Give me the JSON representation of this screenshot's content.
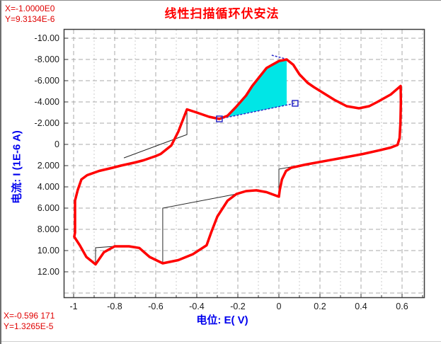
{
  "title": "线性扫描循环伏安法",
  "readouts": {
    "top": {
      "x": "X=-1.0000E0",
      "y": "Y=9.3134E-6"
    },
    "bottom": {
      "x": "X=-0.596 171",
      "y": "Y=1.3265E-5"
    }
  },
  "colors": {
    "curve": "#ff0000",
    "title": "#ff0000",
    "readout": "#e00000",
    "axis_label": "#0000ee",
    "peak_fill": "#00e6e6",
    "marker_blue": "#2a2ac8",
    "grid_major": "#a8a8a8",
    "grid_minor": "#cdcdcd",
    "plot_border": "#3c3c3c",
    "baseline_black": "#282828",
    "tick_text": "#1b1b1b"
  },
  "chart_data": {
    "type": "line",
    "title": "线性扫描循环伏安法",
    "xlabel": "电位:  E( V)",
    "ylabel": "电流:  I (1E-6 A)",
    "x_unit": "V",
    "y_unit": "1E-6 A",
    "xlim": [
      -1.048,
      0.71
    ],
    "ylim": [
      14.5,
      -10.9
    ],
    "y_axis_inverted": true,
    "grid": true,
    "legend": false,
    "x_ticks": [
      -1,
      -0.8,
      -0.6,
      -0.4,
      -0.2,
      0,
      0.2,
      0.4,
      0.6
    ],
    "x_tick_labels": [
      "-1",
      "-0.8",
      "-0.6",
      "-0.4",
      "-0.2",
      "0",
      "0.2",
      "0.4",
      "0.6"
    ],
    "x_minor_ticks": [
      -0.9,
      -0.7,
      -0.5,
      -0.3,
      -0.1,
      0.1,
      0.3,
      0.5,
      0.7
    ],
    "y_ticks": [
      -10,
      -8,
      -6,
      -4,
      -2,
      0,
      2,
      4,
      6,
      8,
      10,
      12
    ],
    "y_tick_labels": [
      "-10.00",
      "-8.000",
      "-6.000",
      "-4.000",
      "-2.000",
      "0",
      "2.000",
      "4.000",
      "6.000",
      "8.000",
      "10.00",
      "12.00"
    ],
    "y_grid_values": [
      -10,
      -8,
      -6,
      -4,
      -2,
      0,
      2,
      4,
      6,
      8,
      10,
      12,
      14
    ],
    "series": [
      {
        "name": "cv-curve",
        "color": "#ff0000",
        "width": 3.5,
        "points": [
          [
            -0.993,
            8.3
          ],
          [
            -0.993,
            5.3
          ],
          [
            -0.98,
            4.3
          ],
          [
            -0.962,
            3.3
          ],
          [
            -0.934,
            2.9
          ],
          [
            -0.876,
            2.5
          ],
          [
            -0.81,
            2.2
          ],
          [
            -0.77,
            2.0
          ],
          [
            -0.7,
            1.7
          ],
          [
            -0.66,
            1.5
          ],
          [
            -0.6,
            1.1
          ],
          [
            -0.576,
            0.9
          ],
          [
            -0.524,
            0.1
          ],
          [
            -0.49,
            -1.2
          ],
          [
            -0.448,
            -3.3
          ],
          [
            -0.4,
            -3.0
          ],
          [
            -0.34,
            -2.6
          ],
          [
            -0.29,
            -2.4
          ],
          [
            -0.25,
            -2.7
          ],
          [
            -0.21,
            -3.5
          ],
          [
            -0.16,
            -4.6
          ],
          [
            -0.13,
            -5.5
          ],
          [
            -0.06,
            -7.2
          ],
          [
            0.0,
            -7.85
          ],
          [
            0.038,
            -8.0
          ],
          [
            0.07,
            -7.5
          ],
          [
            0.1,
            -6.6
          ],
          [
            0.14,
            -5.8
          ],
          [
            0.17,
            -5.4
          ],
          [
            0.27,
            -4.2
          ],
          [
            0.33,
            -3.6
          ],
          [
            0.39,
            -3.4
          ],
          [
            0.44,
            -3.6
          ],
          [
            0.48,
            -4.0
          ],
          [
            0.545,
            -4.7
          ],
          [
            0.593,
            -5.5
          ],
          [
            0.594,
            -4.0
          ],
          [
            0.592,
            -2.0
          ],
          [
            0.588,
            -0.6
          ],
          [
            0.578,
            0.05
          ],
          [
            0.545,
            0.3
          ],
          [
            0.49,
            0.55
          ],
          [
            0.41,
            0.9
          ],
          [
            0.3,
            1.3
          ],
          [
            0.228,
            1.55
          ],
          [
            0.13,
            1.9
          ],
          [
            0.06,
            2.2
          ],
          [
            0.035,
            2.5
          ],
          [
            0.015,
            3.3
          ],
          [
            0.004,
            4.3
          ],
          [
            0.0,
            4.93
          ],
          [
            -0.06,
            4.5
          ],
          [
            -0.11,
            4.33
          ],
          [
            -0.16,
            4.4
          ],
          [
            -0.207,
            4.67
          ],
          [
            -0.25,
            5.3
          ],
          [
            -0.3,
            6.8
          ],
          [
            -0.33,
            8.3
          ],
          [
            -0.352,
            9.5
          ],
          [
            -0.42,
            10.35
          ],
          [
            -0.49,
            10.9
          ],
          [
            -0.566,
            11.2
          ],
          [
            -0.63,
            10.6
          ],
          [
            -0.68,
            9.75
          ],
          [
            -0.73,
            9.6
          ],
          [
            -0.8,
            9.6
          ],
          [
            -0.852,
            10.15
          ],
          [
            -0.893,
            11.3
          ],
          [
            -0.938,
            10.6
          ],
          [
            -0.97,
            9.5
          ],
          [
            -0.997,
            8.7
          ],
          [
            -0.993,
            8.3
          ]
        ]
      }
    ],
    "baseline_constructions": [
      {
        "name": "baseline-anodic-minus0.45V",
        "points": [
          [
            -0.755,
            1.27
          ],
          [
            -0.448,
            -0.93
          ],
          [
            -0.448,
            -3.3
          ]
        ]
      },
      {
        "name": "baseline-cathodic-minus0.89V",
        "points": [
          [
            -0.8,
            9.6
          ],
          [
            -0.893,
            9.73
          ],
          [
            -0.893,
            11.27
          ]
        ]
      },
      {
        "name": "baseline-cathodic-minus0.57V",
        "points": [
          [
            -0.207,
            4.67
          ],
          [
            -0.566,
            6.0
          ],
          [
            -0.566,
            11.2
          ]
        ]
      },
      {
        "name": "baseline-cathodic-0V",
        "points": [
          [
            0.228,
            1.55
          ],
          [
            0.0,
            2.33
          ],
          [
            0.0,
            4.93
          ]
        ]
      }
    ],
    "active_peak": {
      "fill_color": "#00e6e6",
      "marker1": [
        -0.29,
        -2.4
      ],
      "marker2": [
        0.079,
        -3.87
      ],
      "peak": [
        0.038,
        -8.0
      ],
      "fill_curve": [
        [
          -0.29,
          -2.4
        ],
        [
          -0.25,
          -2.7
        ],
        [
          -0.21,
          -3.5
        ],
        [
          -0.16,
          -4.6
        ],
        [
          -0.13,
          -5.5
        ],
        [
          -0.06,
          -7.2
        ],
        [
          0.0,
          -7.85
        ],
        [
          0.038,
          -8.0
        ]
      ],
      "tangent_dash": [
        [
          -0.035,
          -8.4
        ],
        [
          0.04,
          -8.02
        ]
      ]
    }
  }
}
